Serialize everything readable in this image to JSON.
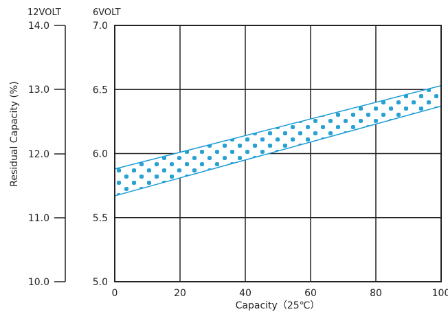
{
  "chart_data": {
    "type": "area",
    "title": "",
    "xlabel": "Capacity（25℃）",
    "ylabel": "Residual Capacity (%)",
    "xlim": [
      0,
      100
    ],
    "ylim": [
      5.0,
      7.0
    ],
    "x_ticks": [
      "0",
      "20",
      "40",
      "60",
      "80",
      "100"
    ],
    "y_ticks_6v": [
      "5.0",
      "5.5",
      "6.0",
      "6.5",
      "7.0"
    ],
    "y_ticks_12v": [
      "10.0",
      "11.0",
      "12.0",
      "13.0",
      "14.0"
    ],
    "left_axis_unit": "12VOLT",
    "right_axis_unit": "6VOLT",
    "grid": true,
    "band": {
      "x": [
        0,
        100
      ],
      "upper": [
        5.88,
        6.53
      ],
      "lower": [
        5.67,
        6.37
      ]
    },
    "colors": {
      "band_edge": "#1a9bd6",
      "band_fill": "#2aa1d3",
      "grid": "#222222"
    }
  }
}
